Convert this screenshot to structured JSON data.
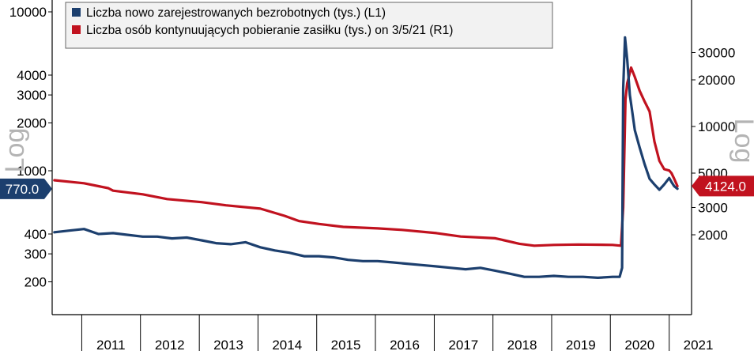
{
  "chart_data": {
    "type": "line",
    "title": "",
    "x_years": [
      "2011",
      "2012",
      "2013",
      "2014",
      "2015",
      "2016",
      "2017",
      "2018",
      "2019",
      "2020",
      "2021"
    ],
    "y_left": {
      "scale": "log",
      "range": [
        160,
        10000
      ],
      "ticks": [
        "10000",
        "4000",
        "3000",
        "2000",
        "1000",
        "400",
        "300",
        "200"
      ],
      "label": "Log"
    },
    "y_right": {
      "scale": "log",
      "range": [
        1500,
        40000
      ],
      "ticks": [
        "30000",
        "20000",
        "10000",
        "5000",
        "3000",
        "2000"
      ],
      "label": "Log"
    },
    "grid": false,
    "legend_position": "top-left",
    "series": [
      {
        "name": "Liczba nowo zarejestrowanych bezrobotnych (tys.) (L1)",
        "axis": "left",
        "color": "#1c3f6e",
        "points": [
          [
            "2010-07-15",
            410
          ],
          [
            "2010-10-15",
            420
          ],
          [
            "2011-01-15",
            430
          ],
          [
            "2011-04-15",
            400
          ],
          [
            "2011-07-15",
            405
          ],
          [
            "2011-10-15",
            395
          ],
          [
            "2012-01-15",
            385
          ],
          [
            "2012-04-15",
            385
          ],
          [
            "2012-07-15",
            375
          ],
          [
            "2012-10-15",
            380
          ],
          [
            "2013-01-15",
            365
          ],
          [
            "2013-04-15",
            350
          ],
          [
            "2013-07-15",
            345
          ],
          [
            "2013-10-15",
            355
          ],
          [
            "2014-01-15",
            330
          ],
          [
            "2014-04-15",
            315
          ],
          [
            "2014-07-15",
            305
          ],
          [
            "2014-10-15",
            290
          ],
          [
            "2015-01-15",
            290
          ],
          [
            "2015-04-15",
            285
          ],
          [
            "2015-07-15",
            275
          ],
          [
            "2015-10-15",
            270
          ],
          [
            "2016-01-15",
            270
          ],
          [
            "2016-04-15",
            265
          ],
          [
            "2016-07-15",
            260
          ],
          [
            "2016-10-15",
            255
          ],
          [
            "2017-01-15",
            250
          ],
          [
            "2017-04-15",
            245
          ],
          [
            "2017-07-15",
            240
          ],
          [
            "2017-10-15",
            245
          ],
          [
            "2018-01-15",
            235
          ],
          [
            "2018-04-15",
            225
          ],
          [
            "2018-07-15",
            215
          ],
          [
            "2018-10-15",
            215
          ],
          [
            "2019-01-15",
            218
          ],
          [
            "2019-04-15",
            215
          ],
          [
            "2019-07-15",
            215
          ],
          [
            "2019-10-15",
            212
          ],
          [
            "2020-01-15",
            215
          ],
          [
            "2020-02-28",
            215
          ],
          [
            "2020-03-14",
            245
          ],
          [
            "2020-03-21",
            3300
          ],
          [
            "2020-04-01",
            6900
          ],
          [
            "2020-04-15",
            5000
          ],
          [
            "2020-05-01",
            3000
          ],
          [
            "2020-05-15",
            2400
          ],
          [
            "2020-06-01",
            1800
          ],
          [
            "2020-07-01",
            1400
          ],
          [
            "2020-08-01",
            1100
          ],
          [
            "2020-09-01",
            890
          ],
          [
            "2020-10-01",
            820
          ],
          [
            "2020-11-01",
            760
          ],
          [
            "2020-12-01",
            820
          ],
          [
            "2021-01-01",
            900
          ],
          [
            "2021-01-15",
            850
          ],
          [
            "2021-02-01",
            800
          ],
          [
            "2021-02-21",
            770
          ]
        ]
      },
      {
        "name": "Liczba osób kontynuujących pobieranie zasiłku (tys.) on 3/5/21 (R1)",
        "axis": "right",
        "color": "#c1121f",
        "points": [
          [
            "2010-07-15",
            4500
          ],
          [
            "2011-01-15",
            4300
          ],
          [
            "2011-06-15",
            4000
          ],
          [
            "2011-07-15",
            3850
          ],
          [
            "2012-01-15",
            3650
          ],
          [
            "2012-06-15",
            3400
          ],
          [
            "2013-01-15",
            3250
          ],
          [
            "2013-06-15",
            3100
          ],
          [
            "2014-01-15",
            2950
          ],
          [
            "2014-06-15",
            2650
          ],
          [
            "2014-09-15",
            2450
          ],
          [
            "2015-01-15",
            2350
          ],
          [
            "2015-06-15",
            2250
          ],
          [
            "2016-01-15",
            2200
          ],
          [
            "2016-06-15",
            2150
          ],
          [
            "2017-01-15",
            2050
          ],
          [
            "2017-06-15",
            1950
          ],
          [
            "2018-01-15",
            1900
          ],
          [
            "2018-06-15",
            1750
          ],
          [
            "2018-09-15",
            1700
          ],
          [
            "2019-01-15",
            1720
          ],
          [
            "2019-06-15",
            1730
          ],
          [
            "2020-01-15",
            1720
          ],
          [
            "2020-03-07",
            1700
          ],
          [
            "2020-03-21",
            3000
          ],
          [
            "2020-04-04",
            15000
          ],
          [
            "2020-04-15",
            19000
          ],
          [
            "2020-05-09",
            24000
          ],
          [
            "2020-05-31",
            21000
          ],
          [
            "2020-07-01",
            17000
          ],
          [
            "2020-08-01",
            14500
          ],
          [
            "2020-09-01",
            12500
          ],
          [
            "2020-10-01",
            8000
          ],
          [
            "2020-11-01",
            6000
          ],
          [
            "2020-12-01",
            5300
          ],
          [
            "2021-01-01",
            5200
          ],
          [
            "2021-01-15",
            5000
          ],
          [
            "2021-02-01",
            4600
          ],
          [
            "2021-02-21",
            4124
          ]
        ]
      }
    ],
    "annotations": [
      {
        "axis": "left",
        "value": 770.0,
        "label": "770.0"
      },
      {
        "axis": "right",
        "value": 4124.0,
        "label": "4124.0"
      }
    ]
  }
}
